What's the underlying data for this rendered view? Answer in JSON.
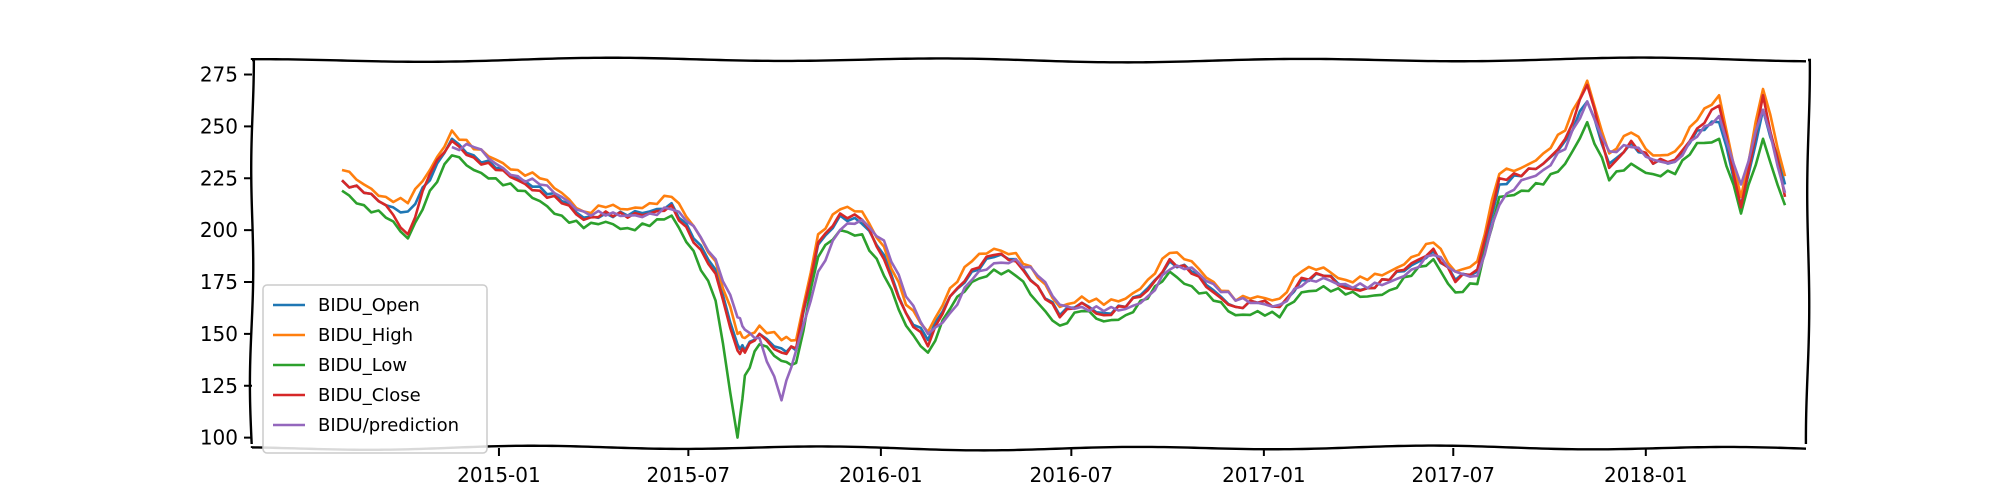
{
  "chart_data": {
    "type": "line",
    "title": "",
    "xlabel": "",
    "ylabel": "",
    "ylim": [
      95,
      282
    ],
    "xlim": [
      "2014-05-10",
      "2018-06-05"
    ],
    "x_ticks": [
      "2015-01",
      "2015-07",
      "2016-01",
      "2016-07",
      "2017-01",
      "2017-07",
      "2018-01"
    ],
    "y_ticks": [
      100,
      125,
      150,
      175,
      200,
      225,
      250,
      275
    ],
    "grid": false,
    "legend_position": "lower-left",
    "style": "xkcd",
    "x": [
      "2014-08-04",
      "2014-08-25",
      "2014-09-15",
      "2014-10-06",
      "2014-10-27",
      "2014-11-17",
      "2014-12-08",
      "2014-12-29",
      "2015-01-19",
      "2015-02-09",
      "2015-03-02",
      "2015-03-23",
      "2015-04-13",
      "2015-05-04",
      "2015-05-25",
      "2015-06-15",
      "2015-07-06",
      "2015-07-27",
      "2015-08-17",
      "2015-08-24",
      "2015-09-07",
      "2015-09-28",
      "2015-10-12",
      "2015-11-02",
      "2015-11-23",
      "2015-12-14",
      "2016-01-04",
      "2016-01-25",
      "2016-02-15",
      "2016-03-07",
      "2016-03-28",
      "2016-04-18",
      "2016-05-09",
      "2016-05-30",
      "2016-06-20",
      "2016-07-11",
      "2016-08-01",
      "2016-08-22",
      "2016-09-12",
      "2016-10-03",
      "2016-10-24",
      "2016-11-14",
      "2016-12-05",
      "2016-12-26",
      "2017-01-16",
      "2017-02-06",
      "2017-02-27",
      "2017-03-20",
      "2017-04-10",
      "2017-05-01",
      "2017-05-22",
      "2017-06-12",
      "2017-07-03",
      "2017-07-24",
      "2017-08-14",
      "2017-09-04",
      "2017-09-25",
      "2017-10-16",
      "2017-11-06",
      "2017-11-27",
      "2017-12-18",
      "2018-01-08",
      "2018-01-29",
      "2018-02-19",
      "2018-03-12",
      "2018-04-02",
      "2018-04-23",
      "2018-05-14"
    ],
    "series": [
      {
        "name": "BIDU_Open",
        "color": "#1f77b4",
        "values": [
          224,
          218,
          212,
          209,
          224,
          244,
          236,
          230,
          225,
          221,
          214,
          206,
          208,
          207,
          209,
          213,
          196,
          181,
          145,
          142,
          150,
          143,
          142,
          193,
          207,
          203,
          188,
          160,
          147,
          168,
          180,
          187,
          186,
          173,
          159,
          165,
          160,
          163,
          172,
          185,
          180,
          171,
          163,
          165,
          163,
          176,
          178,
          173,
          172,
          176,
          183,
          190,
          176,
          180,
          222,
          226,
          232,
          243,
          262,
          232,
          242,
          232,
          233,
          248,
          252,
          212,
          258,
          222
        ]
      },
      {
        "name": "BIDU_High",
        "color": "#ff7f0e",
        "values": [
          229,
          222,
          216,
          213,
          229,
          248,
          239,
          234,
          229,
          225,
          218,
          209,
          211,
          210,
          213,
          216,
          202,
          185,
          150,
          148,
          154,
          147,
          147,
          198,
          210,
          209,
          192,
          164,
          151,
          172,
          185,
          191,
          189,
          177,
          163,
          168,
          164,
          167,
          176,
          189,
          185,
          175,
          166,
          168,
          167,
          180,
          182,
          176,
          176,
          180,
          187,
          194,
          180,
          185,
          227,
          230,
          237,
          248,
          272,
          237,
          247,
          236,
          238,
          253,
          265,
          216,
          268,
          226
        ]
      },
      {
        "name": "BIDU_Low",
        "color": "#2ca02c",
        "values": [
          219,
          212,
          206,
          196,
          219,
          236,
          229,
          225,
          219,
          214,
          207,
          201,
          204,
          201,
          202,
          207,
          190,
          166,
          100,
          130,
          145,
          137,
          136,
          187,
          200,
          198,
          178,
          154,
          141,
          162,
          175,
          181,
          178,
          165,
          154,
          161,
          156,
          159,
          167,
          180,
          173,
          166,
          159,
          161,
          158,
          170,
          173,
          169,
          168,
          171,
          178,
          186,
          170,
          174,
          216,
          219,
          222,
          232,
          252,
          224,
          232,
          227,
          227,
          242,
          244,
          208,
          244,
          212
        ]
      },
      {
        "name": "BIDU_Close",
        "color": "#d62728",
        "values": [
          224,
          218,
          212,
          198,
          227,
          243,
          235,
          229,
          224,
          219,
          213,
          205,
          209,
          206,
          208,
          212,
          194,
          179,
          142,
          141,
          150,
          141,
          143,
          194,
          208,
          205,
          186,
          160,
          144,
          168,
          181,
          188,
          185,
          173,
          158,
          165,
          159,
          163,
          171,
          186,
          179,
          170,
          163,
          165,
          163,
          177,
          178,
          172,
          172,
          176,
          184,
          191,
          175,
          181,
          225,
          226,
          232,
          244,
          270,
          230,
          243,
          232,
          234,
          249,
          260,
          211,
          265,
          216
        ]
      },
      {
        "name": "BIDU/prediction",
        "color": "#9467bd",
        "values": [
          null,
          null,
          null,
          null,
          null,
          240,
          240,
          232,
          226,
          222,
          216,
          209,
          207,
          207,
          208,
          210,
          202,
          186,
          158,
          152,
          148,
          118,
          142,
          180,
          200,
          205,
          195,
          168,
          150,
          160,
          176,
          184,
          186,
          178,
          164,
          163,
          161,
          162,
          168,
          181,
          182,
          174,
          166,
          165,
          164,
          173,
          177,
          174,
          172,
          175,
          181,
          188,
          180,
          178,
          212,
          224,
          229,
          239,
          262,
          238,
          240,
          234,
          233,
          245,
          255,
          222,
          258,
          218
        ]
      }
    ]
  }
}
